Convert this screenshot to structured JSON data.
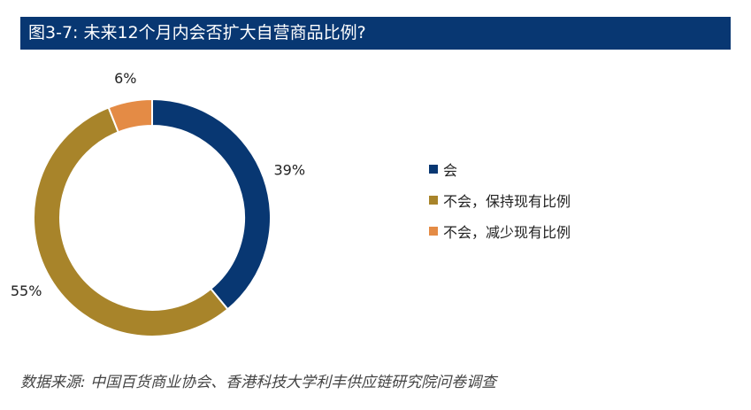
{
  "title": "图3-7: 未来12个月内会否扩大自营商品比例?",
  "chart_data": {
    "type": "pie",
    "donut": true,
    "title": "图3-7: 未来12个月内会否扩大自营商品比例?",
    "categories": [
      "会",
      "不会，保持现有比例",
      "不会，减少现有比例"
    ],
    "values": [
      39,
      55,
      6
    ],
    "value_labels": [
      "39%",
      "55%",
      "6%"
    ],
    "colors": [
      "#083772",
      "#A8842A",
      "#E48B45"
    ],
    "legend_position": "right"
  },
  "source": "数据来源: 中国百货商业协会、香港科技大学利丰供应链研究院问卷调查"
}
